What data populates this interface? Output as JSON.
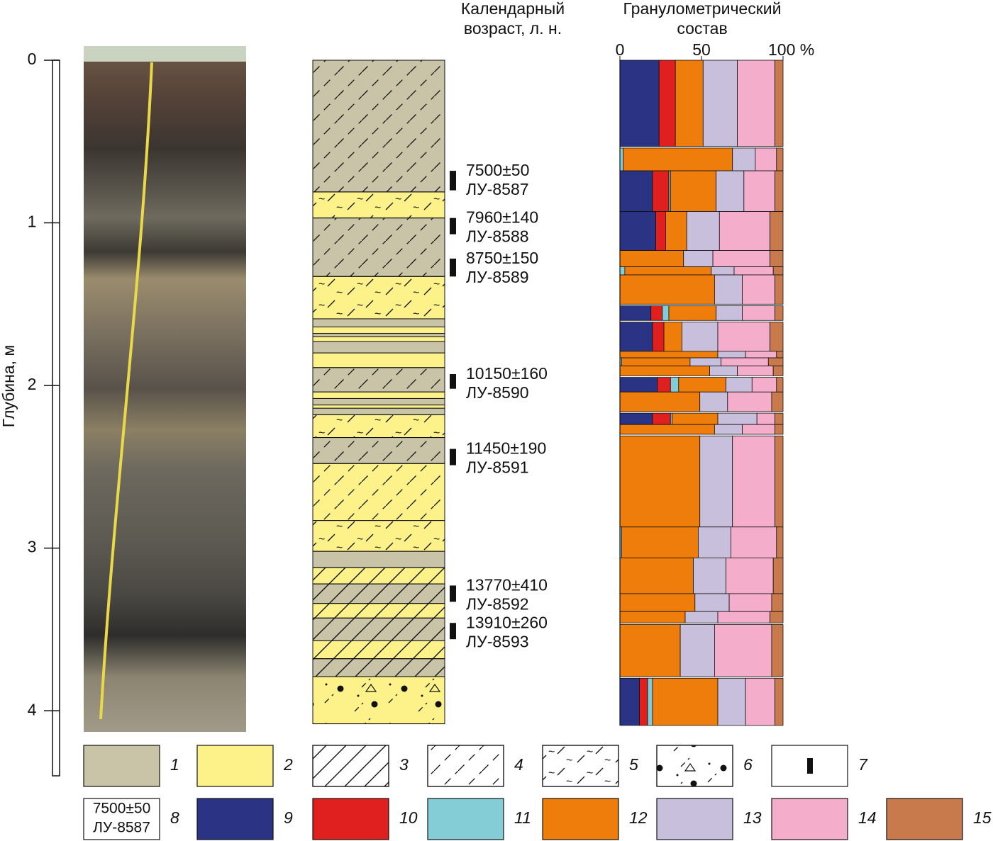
{
  "depth_axis": {
    "label": "Глубина, м",
    "lim": [
      0,
      4.4
    ],
    "ticks": [
      0,
      1,
      2,
      3,
      4
    ]
  },
  "age_header": [
    "Календарный",
    "возраст, л. н."
  ],
  "dates": [
    {
      "age": "7500±50",
      "lab": "ЛУ-8587",
      "top": 0.68,
      "bottom": 0.8
    },
    {
      "age": "7960±140",
      "lab": "ЛУ-8588",
      "top": 0.97,
      "bottom": 1.07
    },
    {
      "age": "8750±150",
      "lab": "ЛУ-8589",
      "top": 1.22,
      "bottom": 1.33
    },
    {
      "age": "10150±160",
      "lab": "ЛУ-8590",
      "top": 1.93,
      "bottom": 2.02
    },
    {
      "age": "11450±190",
      "lab": "ЛУ-8591",
      "top": 2.39,
      "bottom": 2.49
    },
    {
      "age": "13770±410",
      "lab": "ЛУ-8592",
      "top": 3.23,
      "bottom": 3.33
    },
    {
      "age": "13910±260",
      "lab": "ЛУ-8593",
      "top": 3.46,
      "bottom": 3.56
    }
  ],
  "layers": [
    {
      "top": 0,
      "bottom": 0.81,
      "sediment": 1,
      "pattern": 4
    },
    {
      "top": 0.81,
      "bottom": 0.97,
      "sediment": 2,
      "pattern": 5
    },
    {
      "top": 0.97,
      "bottom": 1.33,
      "sediment": 1,
      "pattern": 4
    },
    {
      "top": 1.33,
      "bottom": 1.59,
      "sediment": 2,
      "pattern": 5
    },
    {
      "top": 1.59,
      "bottom": 1.64,
      "sediment": 1,
      "pattern": null
    },
    {
      "top": 1.64,
      "bottom": 1.68,
      "sediment": 2,
      "pattern": null
    },
    {
      "top": 1.68,
      "bottom": 1.7,
      "sediment": 1,
      "pattern": null
    },
    {
      "top": 1.7,
      "bottom": 1.73,
      "sediment": 2,
      "pattern": null
    },
    {
      "top": 1.73,
      "bottom": 1.8,
      "sediment": 1,
      "pattern": null
    },
    {
      "top": 1.8,
      "bottom": 1.89,
      "sediment": 2,
      "pattern": null
    },
    {
      "top": 1.89,
      "bottom": 2.04,
      "sediment": 1,
      "pattern": 4
    },
    {
      "top": 2.04,
      "bottom": 2.08,
      "sediment": 2,
      "pattern": null
    },
    {
      "top": 2.08,
      "bottom": 2.12,
      "sediment": 1,
      "pattern": null
    },
    {
      "top": 2.12,
      "bottom": 2.14,
      "sediment": 2,
      "pattern": null
    },
    {
      "top": 2.14,
      "bottom": 2.18,
      "sediment": 1,
      "pattern": null
    },
    {
      "top": 2.18,
      "bottom": 2.32,
      "sediment": 2,
      "pattern": 5
    },
    {
      "top": 2.32,
      "bottom": 2.48,
      "sediment": 1,
      "pattern": 4
    },
    {
      "top": 2.48,
      "bottom": 2.83,
      "sediment": 2,
      "pattern": 4
    },
    {
      "top": 2.83,
      "bottom": 3.02,
      "sediment": 2,
      "pattern": 5
    },
    {
      "top": 3.02,
      "bottom": 3.12,
      "sediment": 1,
      "pattern": null
    },
    {
      "top": 3.12,
      "bottom": 3.22,
      "sediment": 2,
      "pattern": 3
    },
    {
      "top": 3.22,
      "bottom": 3.34,
      "sediment": 1,
      "pattern": 3
    },
    {
      "top": 3.34,
      "bottom": 3.43,
      "sediment": 2,
      "pattern": 3
    },
    {
      "top": 3.43,
      "bottom": 3.57,
      "sediment": 1,
      "pattern": 3
    },
    {
      "top": 3.57,
      "bottom": 3.68,
      "sediment": 2,
      "pattern": 3
    },
    {
      "top": 3.68,
      "bottom": 3.79,
      "sediment": 1,
      "pattern": 3
    },
    {
      "top": 3.79,
      "bottom": 4.08,
      "sediment": 2,
      "pattern": 6
    }
  ],
  "chart_data": {
    "type": "bar",
    "orientation": "horizontal",
    "stacked": true,
    "title": [
      "Гранулометрический",
      "состав"
    ],
    "xlim": [
      0,
      100
    ],
    "xticks": [
      0,
      50,
      {
        "value": 100,
        "label": "100 %"
      }
    ],
    "intervals": [
      [
        0,
        0.53
      ],
      [
        0.54,
        0.68
      ],
      [
        0.68,
        0.93
      ],
      [
        0.93,
        1.17
      ],
      [
        1.17,
        1.27
      ],
      [
        1.27,
        1.32
      ],
      [
        1.32,
        1.5
      ],
      [
        1.51,
        1.6
      ],
      [
        1.61,
        1.79
      ],
      [
        1.79,
        1.83
      ],
      [
        1.83,
        1.88
      ],
      [
        1.88,
        1.94
      ],
      [
        1.95,
        2.04
      ],
      [
        2.04,
        2.16
      ],
      [
        2.17,
        2.24
      ],
      [
        2.24,
        2.3
      ],
      [
        2.31,
        2.87
      ],
      [
        2.87,
        3.06
      ],
      [
        3.06,
        3.28
      ],
      [
        3.28,
        3.39
      ],
      [
        3.39,
        3.46
      ],
      [
        3.47,
        3.79
      ],
      [
        3.8,
        4.09
      ]
    ],
    "series": [
      {
        "name": "9",
        "color": "#2b3384",
        "values": [
          24,
          0,
          20,
          22,
          0,
          0,
          0,
          19,
          20,
          0,
          0,
          0,
          23,
          0,
          20,
          0,
          0,
          0,
          0,
          0,
          0,
          0,
          12
        ]
      },
      {
        "name": "10",
        "color": "#e0201f",
        "values": [
          10,
          0,
          10,
          6,
          0,
          0,
          0,
          7,
          7,
          0,
          0,
          0,
          8,
          0,
          11,
          0,
          0,
          0,
          0,
          0,
          0,
          0,
          5
        ]
      },
      {
        "name": "11",
        "color": "#85cdd6",
        "values": [
          0,
          2,
          1,
          0,
          0,
          3,
          0,
          4,
          0,
          0,
          1,
          0,
          5,
          0,
          1,
          0,
          0,
          1,
          0,
          0,
          0,
          0,
          3
        ]
      },
      {
        "name": "12",
        "color": "#ee7d0c",
        "values": [
          17,
          67,
          28,
          13,
          39,
          53,
          58,
          29,
          11,
          60,
          42,
          55,
          29,
          49,
          28,
          58,
          49,
          47,
          45,
          46,
          40,
          37,
          40
        ]
      },
      {
        "name": "13",
        "color": "#c8bfdc",
        "values": [
          21,
          14,
          17,
          20,
          18,
          14,
          17,
          16,
          22,
          17,
          19,
          17,
          16,
          17,
          24,
          17,
          20,
          20,
          20,
          21,
          20,
          21,
          17
        ]
      },
      {
        "name": "14",
        "color": "#f4aecb",
        "values": [
          23,
          13,
          19,
          31,
          35,
          24,
          20,
          20,
          32,
          19,
          29,
          22,
          15,
          27,
          11,
          20,
          26,
          28,
          29,
          26,
          32,
          35,
          18
        ]
      },
      {
        "name": "15",
        "color": "#c87a4c",
        "values": [
          5,
          4,
          5,
          8,
          8,
          6,
          5,
          5,
          8,
          4,
          9,
          6,
          4,
          7,
          5,
          5,
          5,
          4,
          6,
          7,
          8,
          7,
          5
        ]
      }
    ]
  },
  "legend": [
    {
      "label": "1",
      "sediment": 1,
      "pattern": null
    },
    {
      "label": "2",
      "sediment": 2,
      "pattern": null
    },
    {
      "label": "3",
      "sediment": null,
      "pattern": 3
    },
    {
      "label": "4",
      "sediment": null,
      "pattern": 4
    },
    {
      "label": "5",
      "sediment": null,
      "pattern": 5
    },
    {
      "label": "6",
      "sediment": null,
      "pattern": 6
    },
    {
      "label": "7",
      "marker": true
    },
    {
      "label": "8",
      "sample": [
        "7500±50",
        "ЛУ-8587"
      ]
    }
  ]
}
